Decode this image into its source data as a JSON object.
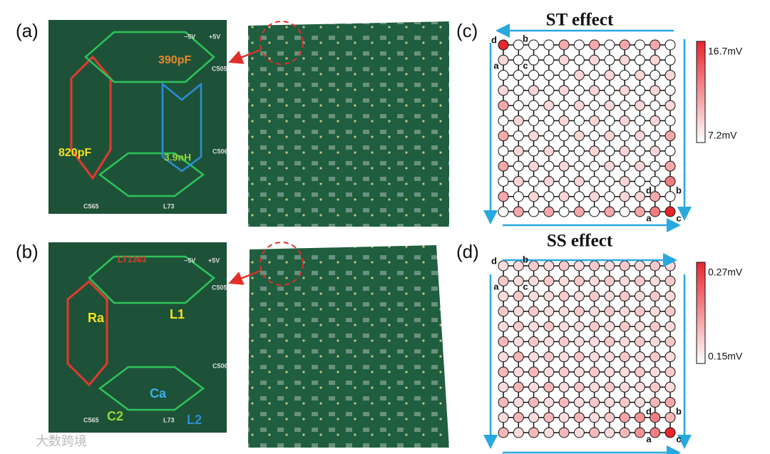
{
  "panel_labels": [
    "(a)",
    "(b)",
    "(c)",
    "(d)"
  ],
  "boards": [
    {
      "labels": [
        "390pF",
        "820pF",
        "3.9nH",
        "−5V",
        "+5V",
        "C505",
        "C506",
        "C565",
        "L73"
      ]
    },
    {
      "labels": [
        "LT1363",
        "Ra",
        "L1",
        "Ca",
        "C2",
        "L2",
        "−5V",
        "+5V",
        "C505",
        "C506",
        "C565",
        "L73"
      ]
    }
  ],
  "lattices": [
    {
      "title": "ST effect",
      "clim": [
        7.2,
        16.7
      ],
      "clim_labels": [
        "7.2mV",
        "16.7mV"
      ],
      "corner_labels": [
        "d",
        "b",
        "a",
        "c",
        "d",
        "b",
        "a",
        "c"
      ],
      "values": [
        [
          16.7,
          7.2,
          7.2,
          7.2,
          11,
          7.2,
          11,
          7.2,
          11,
          7.2,
          11,
          7.2
        ],
        [
          9,
          7.2,
          7.2,
          7.2,
          9,
          7.2,
          9,
          7.2,
          9,
          7.2,
          9,
          7.2
        ],
        [
          7.2,
          7.2,
          7.2,
          7.2,
          7.2,
          9,
          7.2,
          9,
          7.2,
          9,
          7.2,
          9
        ],
        [
          9,
          7.2,
          9,
          7.2,
          9,
          7.2,
          9,
          7.2,
          9,
          7.2,
          9,
          7.2
        ],
        [
          11,
          7.2,
          7.2,
          9,
          7.2,
          9,
          7.2,
          9,
          7.2,
          9,
          7.2,
          9
        ],
        [
          7.2,
          9,
          7.2,
          7.2,
          9,
          7.2,
          9,
          7.2,
          9,
          7.2,
          9,
          7.2
        ],
        [
          11,
          7.2,
          9,
          7.2,
          7.2,
          9,
          7.2,
          9,
          7.2,
          9,
          7.2,
          11
        ],
        [
          7.2,
          9,
          7.2,
          9,
          7.2,
          7.2,
          9,
          7.2,
          9,
          7.2,
          9,
          7.2
        ],
        [
          11,
          7.2,
          9,
          7.2,
          9,
          7.2,
          7.2,
          9,
          7.2,
          9,
          7.2,
          11
        ],
        [
          7.2,
          9,
          7.2,
          9,
          7.2,
          9,
          7.2,
          7.2,
          9,
          7.2,
          7.2,
          13
        ],
        [
          11,
          7.2,
          9,
          7.2,
          9,
          7.2,
          9,
          7.2,
          9,
          9,
          11,
          7.2
        ],
        [
          7.2,
          11,
          7.2,
          11,
          7.2,
          11,
          7.2,
          11,
          7.2,
          11,
          13,
          16.7
        ]
      ]
    },
    {
      "title": "SS effect",
      "clim": [
        0.15,
        0.27
      ],
      "clim_labels": [
        "0.15mV",
        "0.27mV"
      ],
      "corner_labels": [
        "d",
        "b",
        "a",
        "c",
        "d",
        "b",
        "a",
        "c"
      ],
      "values": [
        [
          0.17,
          0.17,
          0.18,
          0.17,
          0.18,
          0.17,
          0.18,
          0.17,
          0.18,
          0.17,
          0.18,
          0.17
        ],
        [
          0.18,
          0.17,
          0.17,
          0.18,
          0.17,
          0.18,
          0.17,
          0.18,
          0.17,
          0.18,
          0.17,
          0.18
        ],
        [
          0.17,
          0.18,
          0.17,
          0.17,
          0.18,
          0.17,
          0.18,
          0.17,
          0.18,
          0.17,
          0.18,
          0.17
        ],
        [
          0.18,
          0.17,
          0.18,
          0.17,
          0.17,
          0.18,
          0.17,
          0.18,
          0.17,
          0.18,
          0.17,
          0.18
        ],
        [
          0.17,
          0.18,
          0.17,
          0.18,
          0.17,
          0.17,
          0.18,
          0.17,
          0.18,
          0.17,
          0.18,
          0.17
        ],
        [
          0.19,
          0.17,
          0.18,
          0.17,
          0.18,
          0.17,
          0.17,
          0.18,
          0.17,
          0.18,
          0.17,
          0.18
        ],
        [
          0.17,
          0.19,
          0.17,
          0.18,
          0.17,
          0.18,
          0.17,
          0.17,
          0.18,
          0.17,
          0.18,
          0.17
        ],
        [
          0.19,
          0.17,
          0.19,
          0.17,
          0.18,
          0.17,
          0.18,
          0.17,
          0.17,
          0.18,
          0.17,
          0.18
        ],
        [
          0.17,
          0.19,
          0.17,
          0.19,
          0.17,
          0.18,
          0.17,
          0.18,
          0.17,
          0.17,
          0.18,
          0.17
        ],
        [
          0.19,
          0.17,
          0.19,
          0.17,
          0.19,
          0.17,
          0.18,
          0.17,
          0.18,
          0.17,
          0.19,
          0.2
        ],
        [
          0.17,
          0.19,
          0.17,
          0.19,
          0.17,
          0.19,
          0.17,
          0.18,
          0.2,
          0.21,
          0.22,
          0.19
        ],
        [
          0.19,
          0.17,
          0.19,
          0.17,
          0.19,
          0.17,
          0.19,
          0.17,
          0.19,
          0.21,
          0.22,
          0.27
        ]
      ]
    }
  ],
  "watermark": "大数跨境"
}
